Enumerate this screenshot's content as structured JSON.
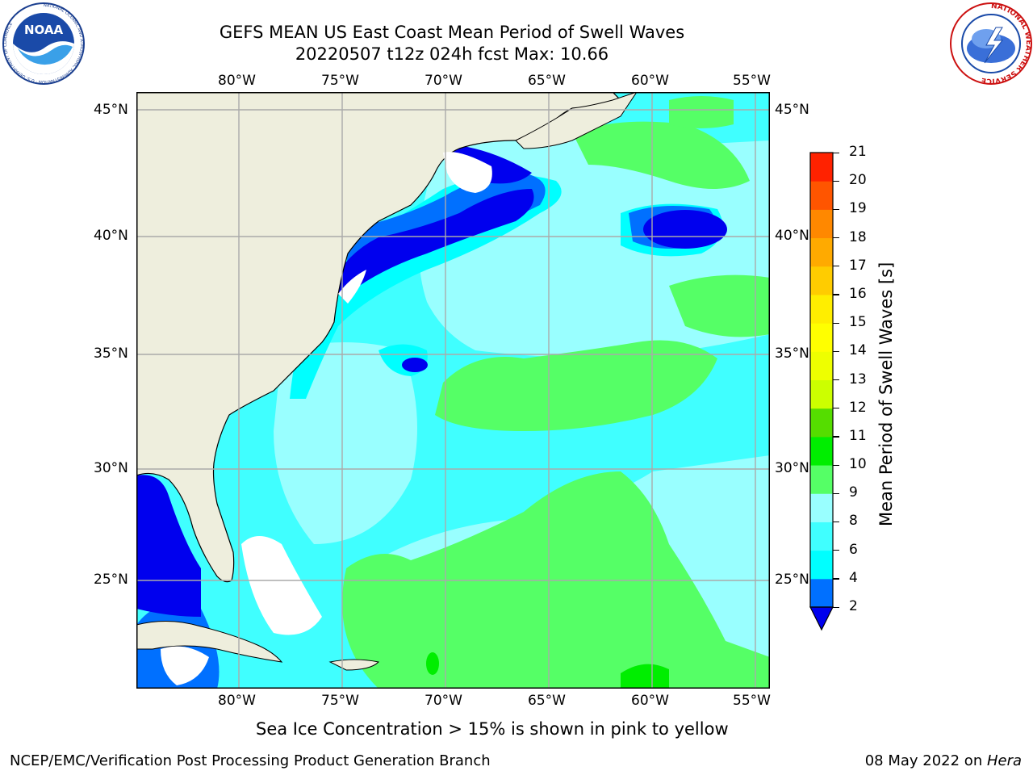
{
  "header": {
    "title_line1": "GEFS MEAN US East Coast Mean Period of Swell Waves",
    "title_line2": "20220507 t12z 024h fcst   Max: 10.66"
  },
  "logos": {
    "left": "NOAA",
    "left_ring_text": "NATIONAL OCEANIC AND ATMOSPHERIC ADMINISTRATION · U.S. DEPARTMENT OF COMMERCE",
    "right_ring_text": "NATIONAL WEATHER SERVICE"
  },
  "map": {
    "lon_labels": [
      "80°W",
      "75°W",
      "70°W",
      "65°W",
      "60°W",
      "55°W"
    ],
    "lat_labels": [
      "45°N",
      "40°N",
      "35°N",
      "30°N",
      "25°N"
    ],
    "colors": {
      "land": "#eeeedd",
      "below_range": "#0000ee",
      "c2_4": "#0070ff",
      "c4_6": "#00ffff",
      "c6_8": "#40ffff",
      "c8_9": "#99ffff",
      "c9_10": "#55ff66",
      "gridline": "#aaaaaa"
    }
  },
  "colorbar": {
    "title": "Mean Period of Swell Waves [s]",
    "ticks": [
      "2",
      "4",
      "6",
      "8",
      "9",
      "10",
      "11",
      "12",
      "13",
      "14",
      "15",
      "16",
      "17",
      "18",
      "19",
      "20",
      "21"
    ],
    "colors": [
      "#0070ff",
      "#00ffff",
      "#40ffff",
      "#99ffff",
      "#55ff66",
      "#00ee00",
      "#55dd00",
      "#ccff00",
      "#eeff00",
      "#ffff00",
      "#ffee00",
      "#ffcc00",
      "#ffaa00",
      "#ff8800",
      "#ff5500",
      "#ff2200"
    ],
    "under_color": "#0000ee"
  },
  "caption": "Sea Ice Concentration > 15% is shown in pink to yellow",
  "footer": {
    "left": "NCEP/EMC/Verification Post Processing Product Generation Branch",
    "right_prefix": "08 May 2022 on ",
    "right_host": "Hera"
  }
}
